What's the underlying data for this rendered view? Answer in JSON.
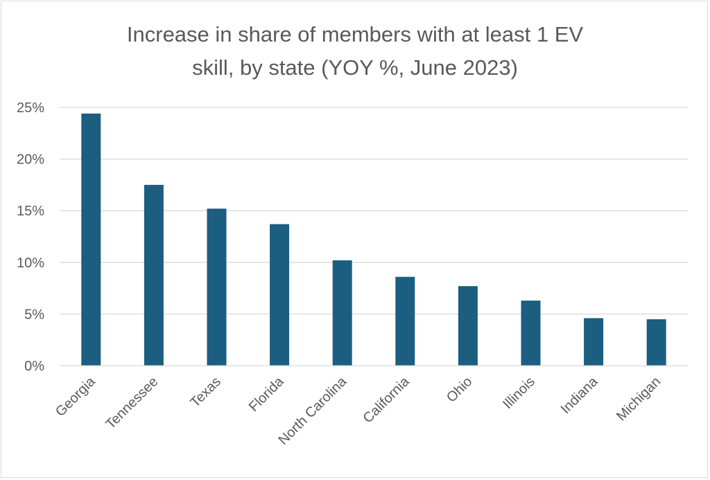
{
  "chart_data": {
    "type": "bar",
    "title_lines": [
      "Increase in share of members with at least 1 EV",
      "skill, by state (YOY %, June 2023)"
    ],
    "categories": [
      "Georgia",
      "Tennessee",
      "Texas",
      "Florida",
      "North Carolina",
      "California",
      "Ohio",
      "Illinois",
      "Indiana",
      "Michigan"
    ],
    "values": [
      24.4,
      17.5,
      15.2,
      13.7,
      10.2,
      8.6,
      7.7,
      6.3,
      4.6,
      4.5
    ],
    "ylim": [
      0,
      25
    ],
    "yticks": [
      0,
      5,
      10,
      15,
      20,
      25
    ],
    "ytick_labels": [
      "0%",
      "5%",
      "10%",
      "15%",
      "20%",
      "25%"
    ],
    "grid": true,
    "bar_color": "#1b5e80"
  }
}
